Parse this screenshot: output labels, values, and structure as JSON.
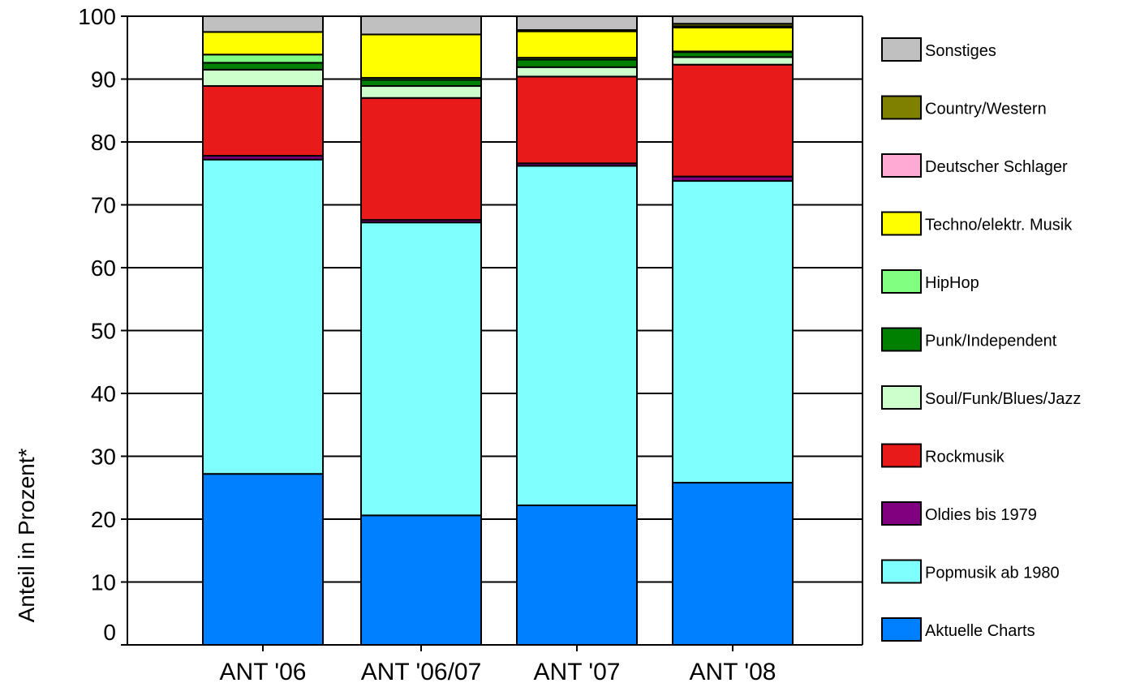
{
  "chart_data": {
    "type": "bar",
    "stacked": true,
    "ylabel": "Anteil in Prozent*",
    "xlabel": "",
    "ylim": [
      0,
      100
    ],
    "yticks": [
      0,
      10,
      20,
      30,
      40,
      50,
      60,
      70,
      80,
      90,
      100
    ],
    "grid": "horizontal",
    "legend_position": "right",
    "categories": [
      "ANT '06",
      "ANT '06/07",
      "ANT '07",
      "ANT '08"
    ],
    "series": [
      {
        "name": "Aktuelle Charts",
        "color": "#0080ff",
        "values": [
          27.2,
          20.6,
          22.2,
          25.8
        ]
      },
      {
        "name": "Popmusik ab 1980",
        "color": "#80ffff",
        "values": [
          50.0,
          46.6,
          54.0,
          48.0
        ]
      },
      {
        "name": "Oldies bis 1979",
        "color": "#800080",
        "values": [
          0.6,
          0.4,
          0.4,
          0.7
        ]
      },
      {
        "name": "Rockmusik",
        "color": "#e81a1a",
        "values": [
          11.1,
          19.4,
          13.8,
          17.8
        ]
      },
      {
        "name": "Soul/Funk/Blues/Jazz",
        "color": "#ccffcc",
        "values": [
          2.6,
          1.9,
          1.5,
          1.2
        ]
      },
      {
        "name": "Punk/Independent",
        "color": "#008000",
        "values": [
          1.1,
          1.0,
          1.2,
          0.8
        ]
      },
      {
        "name": "HipHop",
        "color": "#80ff80",
        "values": [
          1.3,
          0.3,
          0.3,
          0.1
        ]
      },
      {
        "name": "Techno/elektr. Musik",
        "color": "#ffff00",
        "values": [
          3.6,
          6.9,
          4.2,
          3.8
        ]
      },
      {
        "name": "Deutscher Schlager",
        "color": "#ffaad4",
        "values": [
          0.0,
          0.0,
          0.0,
          0.2
        ]
      },
      {
        "name": "Country/Western",
        "color": "#808000",
        "values": [
          0.0,
          0.0,
          0.2,
          0.4
        ]
      },
      {
        "name": "Sonstiges",
        "color": "#c0c0c0",
        "values": [
          2.5,
          2.9,
          2.2,
          1.2
        ]
      }
    ]
  }
}
